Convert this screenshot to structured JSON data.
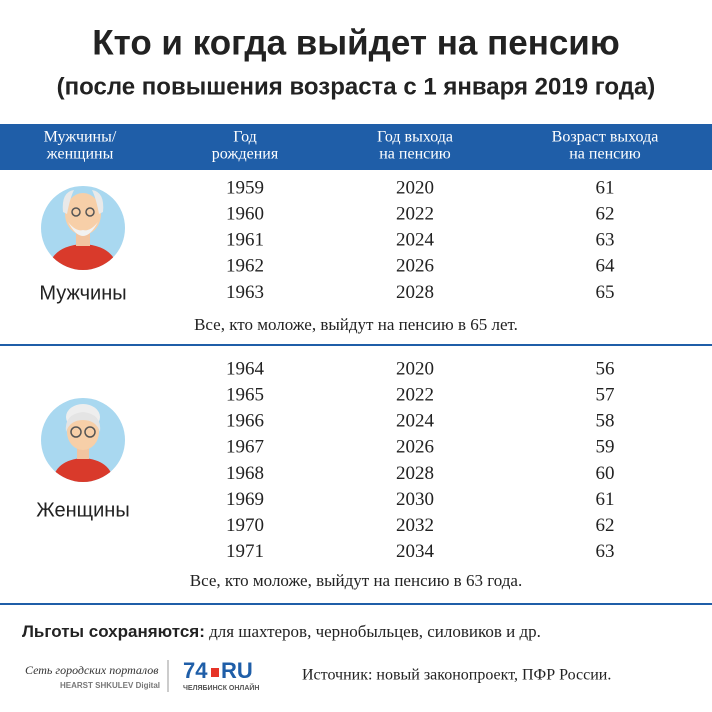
{
  "title": "Кто и когда выйдет на пенсию",
  "subtitle": "(после повышения возраста с 1 января 2019 года)",
  "table": {
    "header": [
      [
        "Мужчины/",
        "женщины"
      ],
      [
        "Год",
        "рождения"
      ],
      [
        "Год выхода",
        "на пенсию"
      ],
      [
        "Возраст выхода",
        "на пенсию"
      ]
    ],
    "groups": [
      {
        "label": "Мужчины",
        "rows": [
          [
            1959,
            2020,
            61
          ],
          [
            1960,
            2022,
            62
          ],
          [
            1961,
            2024,
            63
          ],
          [
            1962,
            2026,
            64
          ],
          [
            1963,
            2028,
            65
          ]
        ],
        "note": "Все, кто моложе, выйдут на пенсию в 65 лет."
      },
      {
        "label": "Женщины",
        "rows": [
          [
            1964,
            2020,
            56
          ],
          [
            1965,
            2022,
            57
          ],
          [
            1966,
            2024,
            58
          ],
          [
            1967,
            2026,
            59
          ],
          [
            1968,
            2028,
            60
          ],
          [
            1969,
            2030,
            61
          ],
          [
            1970,
            2032,
            62
          ],
          [
            1971,
            2034,
            63
          ]
        ],
        "note": "Все, кто моложе, выйдут на пенсию в 63 года."
      }
    ]
  },
  "footer": {
    "benefits_label": "Льготы сохраняются:",
    "benefits_text": "для шахтеров, чернобыльцев, силовиков и др.",
    "network": "Сеть городских порталов",
    "network_sub": "HEARST SHKULEV Digital",
    "brand_number": "74",
    "brand_domain": "RU",
    "brand_city": "ЧЕЛЯБИНСК ОНЛАЙН",
    "source": "Источник: новый законопроект, ПФР России."
  }
}
